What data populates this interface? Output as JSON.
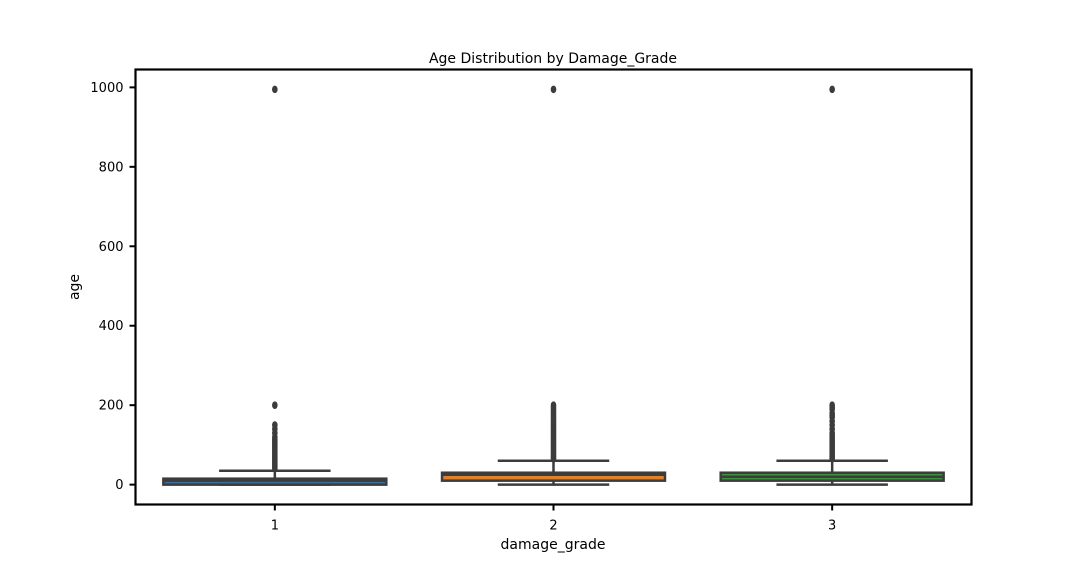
{
  "chart_data": {
    "type": "box",
    "title": "Age Distribution by Damage_Grade",
    "xlabel": "damage_grade",
    "ylabel": "age",
    "ylim": [
      -50,
      1045
    ],
    "yticks": [
      0,
      200,
      400,
      600,
      800,
      1000
    ],
    "ytick_labels": [
      "0",
      "200",
      "400",
      "600",
      "800",
      "1000"
    ],
    "grid": false,
    "legend": "none",
    "categories": [
      "1",
      "2",
      "3"
    ],
    "boxes": [
      {
        "category": "1",
        "color": "#3b6e9c",
        "whisker_low": 0,
        "q1": 0,
        "median": 10,
        "q3": 15,
        "whisker_high": 35,
        "outliers": [
          40,
          45,
          50,
          55,
          60,
          65,
          70,
          75,
          80,
          85,
          90,
          95,
          100,
          105,
          110,
          115,
          120,
          130,
          140,
          150,
          200,
          995
        ]
      },
      {
        "category": "2",
        "color": "#e1812c",
        "whisker_low": 0,
        "q1": 10,
        "median": 25,
        "q3": 30,
        "whisker_high": 60,
        "outliers": [
          65,
          70,
          75,
          80,
          85,
          90,
          95,
          100,
          105,
          110,
          115,
          120,
          125,
          130,
          135,
          140,
          145,
          150,
          155,
          160,
          165,
          170,
          175,
          180,
          185,
          190,
          195,
          200,
          995
        ]
      },
      {
        "category": "3",
        "color": "#3a923a",
        "whisker_low": 0,
        "q1": 10,
        "median": 20,
        "q3": 30,
        "whisker_high": 60,
        "outliers": [
          65,
          70,
          75,
          80,
          85,
          90,
          95,
          100,
          105,
          110,
          115,
          120,
          125,
          130,
          140,
          150,
          160,
          170,
          175,
          180,
          190,
          195,
          200,
          995
        ]
      }
    ]
  }
}
